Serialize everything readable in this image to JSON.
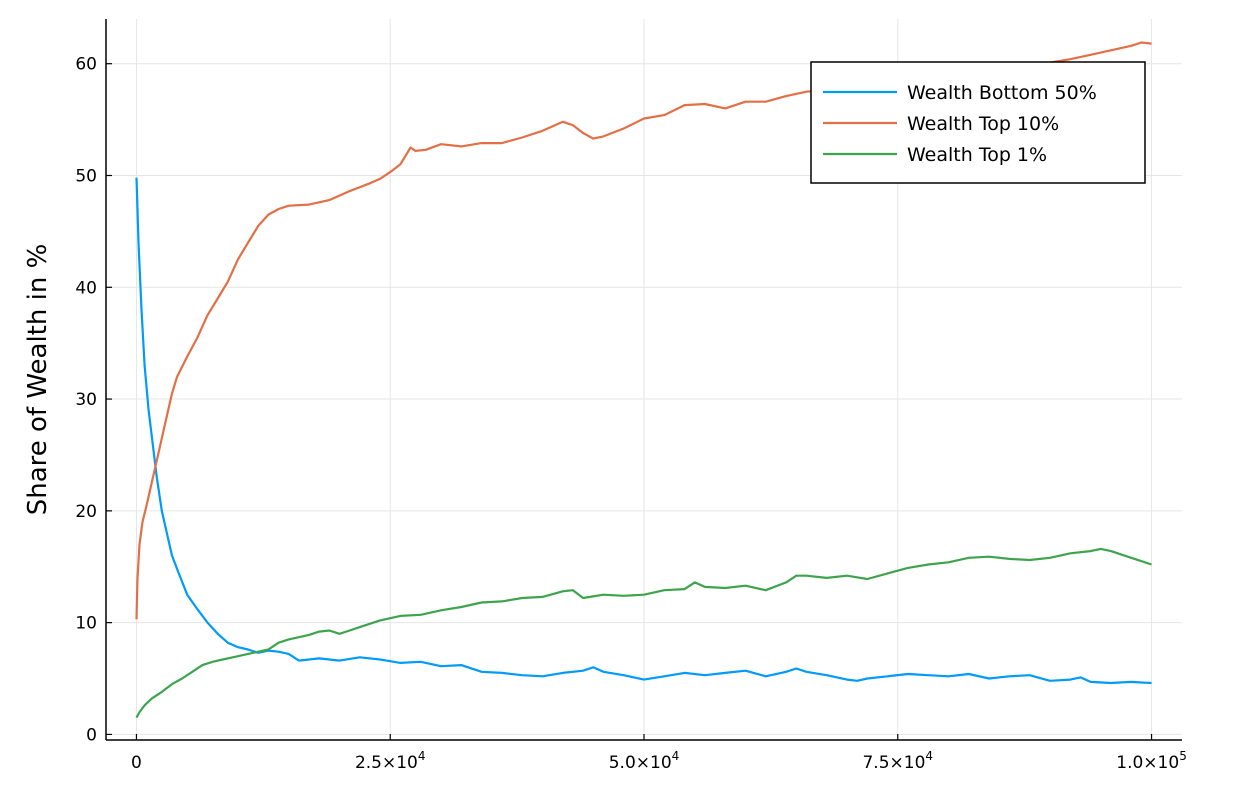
{
  "chart_data": {
    "type": "line",
    "title": "",
    "xlabel": "",
    "ylabel": "Share of Wealth in %",
    "xlim": [
      -3000,
      103000
    ],
    "ylim": [
      -0.5,
      64
    ],
    "grid": true,
    "legend_position": "top-right",
    "x_ticks": [
      {
        "value": 0,
        "base": "0",
        "exp": ""
      },
      {
        "value": 25000,
        "base": "2.5×10",
        "exp": "4"
      },
      {
        "value": 50000,
        "base": "5.0×10",
        "exp": "4"
      },
      {
        "value": 75000,
        "base": "7.5×10",
        "exp": "4"
      },
      {
        "value": 100000,
        "base": "1.0×10",
        "exp": "5"
      }
    ],
    "y_ticks": [
      0,
      10,
      20,
      30,
      40,
      50,
      60
    ],
    "series": [
      {
        "name": "Wealth Bottom 50%",
        "color": "#009af9",
        "x": [
          0,
          200,
          500,
          800,
          1200,
          1600,
          2000,
          2500,
          3000,
          3500,
          4000,
          5000,
          6000,
          7000,
          8000,
          9000,
          10000,
          11000,
          12000,
          13000,
          14000,
          15000,
          16000,
          18000,
          20000,
          22000,
          24000,
          26000,
          28000,
          30000,
          32000,
          34000,
          36000,
          38000,
          40000,
          42000,
          44000,
          45000,
          46000,
          48000,
          50000,
          52000,
          54000,
          56000,
          58000,
          60000,
          62000,
          64000,
          65000,
          66000,
          68000,
          70000,
          71000,
          72000,
          74000,
          76000,
          78000,
          80000,
          82000,
          84000,
          86000,
          88000,
          90000,
          92000,
          93000,
          94000,
          96000,
          98000,
          100000
        ],
        "y": [
          49.8,
          44,
          38,
          33,
          29,
          26,
          23,
          20,
          18,
          16,
          14.8,
          12.5,
          11.2,
          10,
          9,
          8.2,
          7.8,
          7.6,
          7.3,
          7.5,
          7.4,
          7.2,
          6.6,
          6.8,
          6.6,
          6.9,
          6.7,
          6.4,
          6.5,
          6.1,
          6.2,
          5.6,
          5.5,
          5.3,
          5.2,
          5.5,
          5.7,
          6.0,
          5.6,
          5.3,
          4.9,
          5.2,
          5.5,
          5.3,
          5.5,
          5.7,
          5.2,
          5.6,
          5.9,
          5.6,
          5.3,
          4.9,
          4.8,
          5.0,
          5.2,
          5.4,
          5.3,
          5.2,
          5.4,
          5.0,
          5.2,
          5.3,
          4.8,
          4.9,
          5.1,
          4.7,
          4.6,
          4.7,
          4.6
        ]
      },
      {
        "name": "Wealth Top 10%",
        "color": "#e26f46",
        "x": [
          0,
          100,
          300,
          600,
          1000,
          1500,
          2000,
          2500,
          3000,
          3500,
          4000,
          5000,
          6000,
          7000,
          8000,
          9000,
          10000,
          11000,
          12000,
          13000,
          14000,
          15000,
          17000,
          19000,
          21000,
          23000,
          24000,
          25000,
          26000,
          27000,
          27500,
          28500,
          30000,
          32000,
          34000,
          36000,
          38000,
          40000,
          42000,
          43000,
          44000,
          45000,
          46000,
          48000,
          50000,
          52000,
          54000,
          56000,
          58000,
          60000,
          62000,
          64000,
          66000,
          70000,
          75000,
          80000,
          85000,
          88000,
          90000,
          92000,
          94000,
          96000,
          98000,
          99000,
          100000
        ],
        "y": [
          10.3,
          14,
          17,
          19,
          20.5,
          22.5,
          24.5,
          26.5,
          28.5,
          30.5,
          32,
          33.8,
          35.5,
          37.5,
          39,
          40.5,
          42.5,
          44,
          45.5,
          46.5,
          47,
          47.3,
          47.4,
          47.8,
          48.6,
          49.3,
          49.7,
          50.3,
          51,
          52.5,
          52.2,
          52.3,
          52.8,
          52.6,
          52.9,
          52.9,
          53.4,
          54.0,
          54.8,
          54.5,
          53.8,
          53.3,
          53.5,
          54.2,
          55.1,
          55.4,
          56.3,
          56.4,
          56.0,
          56.6,
          56.6,
          57.1,
          57.5,
          57.8,
          58.1,
          58.6,
          59.1,
          59.5,
          60.1,
          60.4,
          60.8,
          61.2,
          61.6,
          61.9,
          61.8
        ]
      },
      {
        "name": "Wealth Top 1%",
        "color": "#3da44d",
        "x": [
          0,
          300,
          800,
          1500,
          2500,
          3500,
          4500,
          5500,
          6500,
          7500,
          8500,
          10000,
          11000,
          12000,
          13000,
          14000,
          15000,
          16000,
          17000,
          18000,
          19000,
          20000,
          21000,
          22000,
          24000,
          26000,
          28000,
          30000,
          32000,
          34000,
          36000,
          38000,
          40000,
          42000,
          43000,
          44000,
          46000,
          48000,
          50000,
          52000,
          54000,
          55000,
          56000,
          58000,
          60000,
          62000,
          64000,
          65000,
          66000,
          68000,
          70000,
          72000,
          74000,
          76000,
          78000,
          80000,
          82000,
          84000,
          86000,
          88000,
          90000,
          92000,
          94000,
          95000,
          96000,
          98000,
          100000
        ],
        "y": [
          1.5,
          2.0,
          2.6,
          3.2,
          3.8,
          4.5,
          5.0,
          5.6,
          6.2,
          6.5,
          6.7,
          7.0,
          7.2,
          7.4,
          7.6,
          8.2,
          8.5,
          8.7,
          8.9,
          9.2,
          9.3,
          9.0,
          9.3,
          9.6,
          10.2,
          10.6,
          10.7,
          11.1,
          11.4,
          11.8,
          11.9,
          12.2,
          12.3,
          12.8,
          12.9,
          12.2,
          12.5,
          12.4,
          12.5,
          12.9,
          13.0,
          13.6,
          13.2,
          13.1,
          13.3,
          12.9,
          13.6,
          14.2,
          14.2,
          14.0,
          14.2,
          13.9,
          14.4,
          14.9,
          15.2,
          15.4,
          15.8,
          15.9,
          15.7,
          15.6,
          15.8,
          16.2,
          16.4,
          16.6,
          16.4,
          15.8,
          15.2
        ]
      }
    ]
  }
}
